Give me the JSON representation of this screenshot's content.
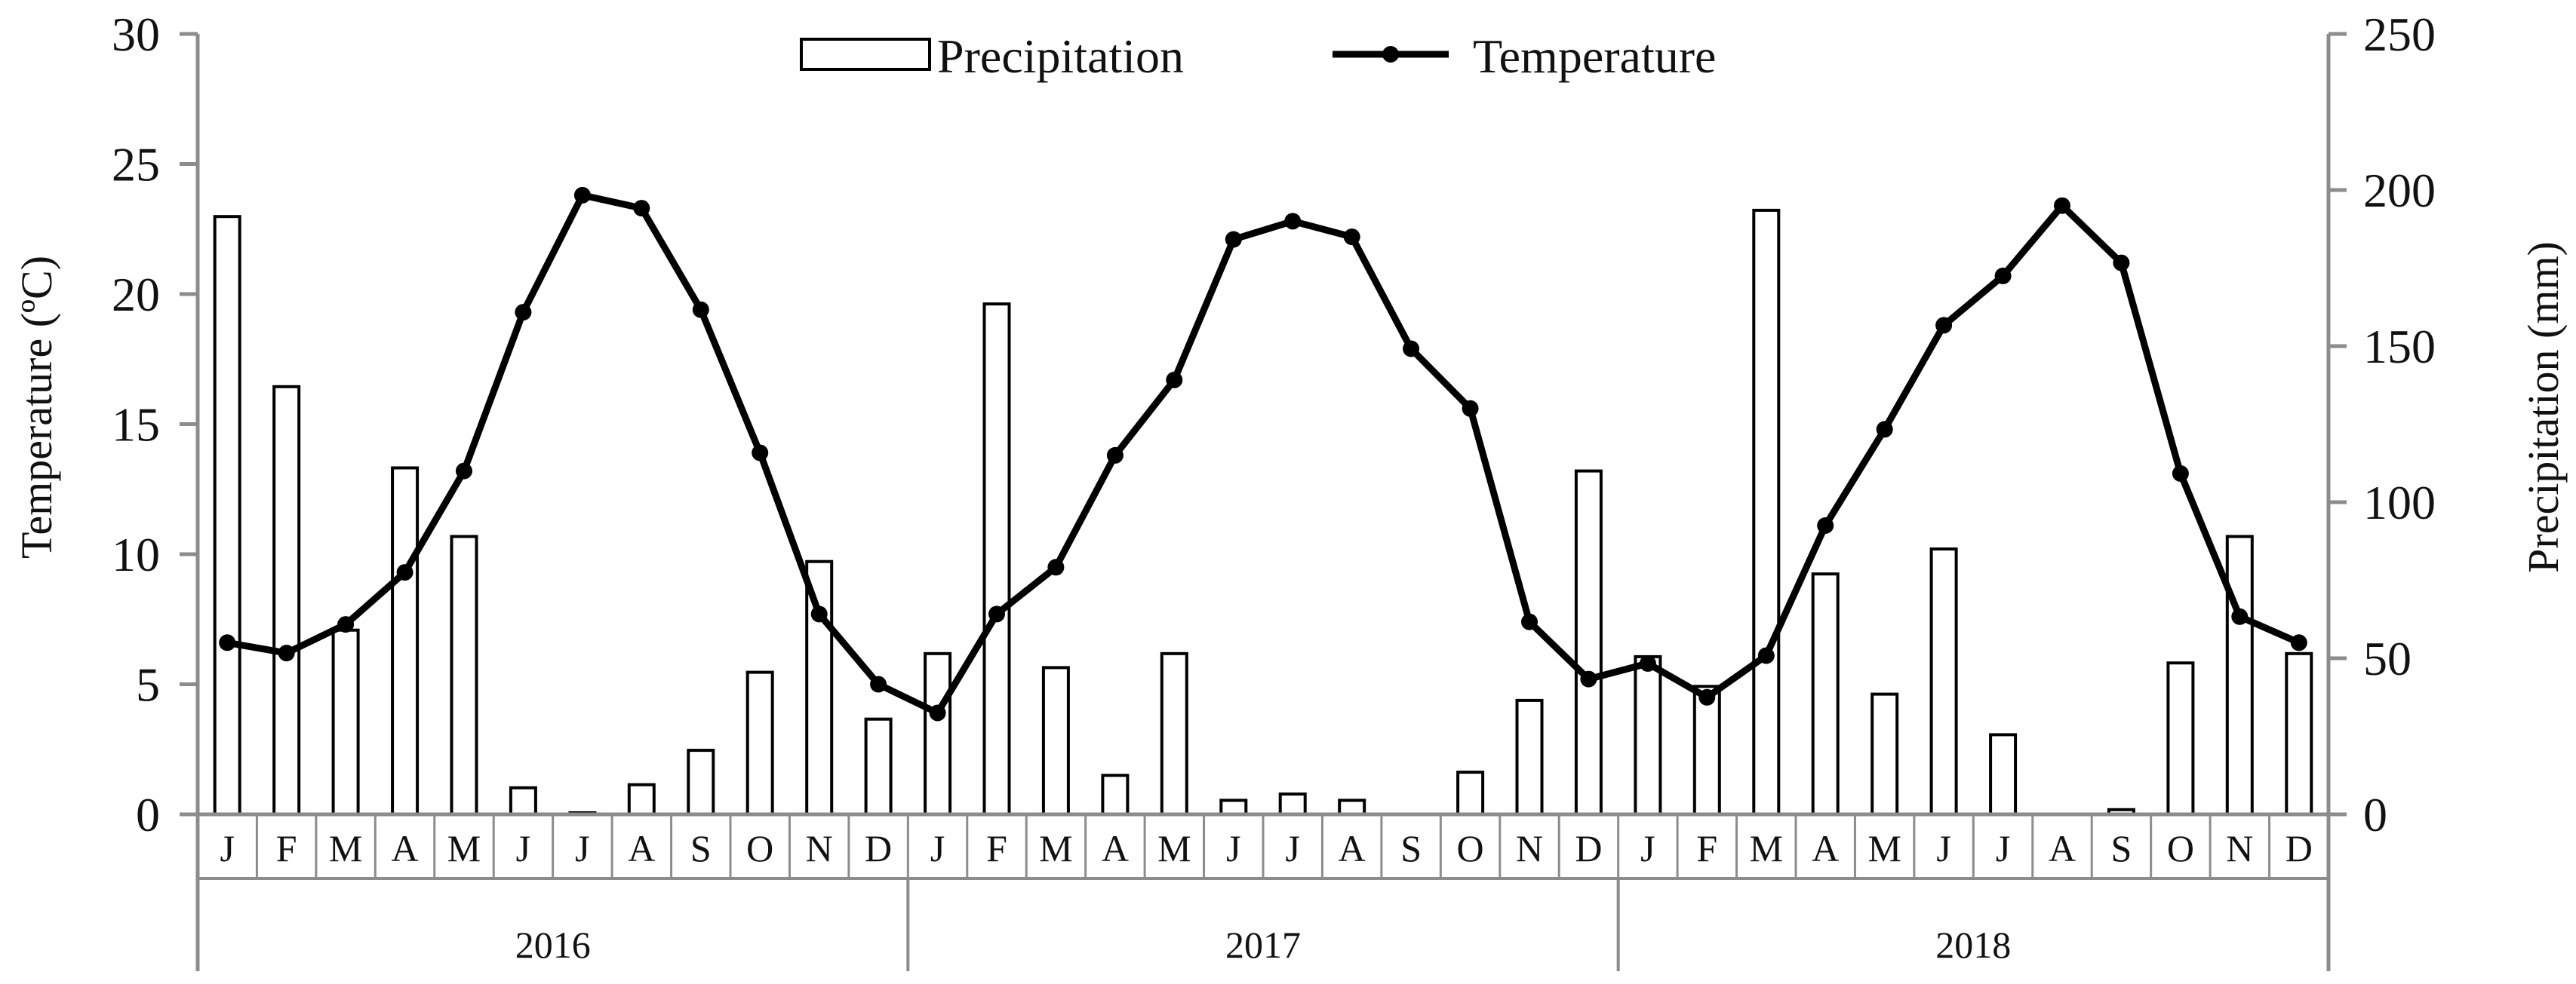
{
  "chart_data": {
    "type": "bar+line",
    "x_categories": [
      "J",
      "F",
      "M",
      "A",
      "M",
      "J",
      "J",
      "A",
      "S",
      "O",
      "N",
      "D",
      "J",
      "F",
      "M",
      "A",
      "M",
      "J",
      "J",
      "A",
      "S",
      "O",
      "N",
      "D",
      "J",
      "F",
      "M",
      "A",
      "M",
      "J",
      "J",
      "A",
      "S",
      "O",
      "N",
      "D"
    ],
    "year_groups": [
      {
        "label": "2016",
        "start": 0,
        "count": 12
      },
      {
        "label": "2017",
        "start": 12,
        "count": 12
      },
      {
        "label": "2018",
        "start": 24,
        "count": 12
      }
    ],
    "series": [
      {
        "name": "Precipitation",
        "type": "bar",
        "axis": "right",
        "values": [
          191.5,
          137,
          59,
          111,
          89,
          8.5,
          0.5,
          9.5,
          20.5,
          45.5,
          81,
          30.5,
          51.5,
          163.5,
          47,
          12.5,
          51.5,
          4.5,
          6.5,
          4.5,
          0,
          13.5,
          36.5,
          110,
          50.5,
          41,
          193.5,
          77,
          38.5,
          85,
          25.5,
          0,
          1.5,
          48.5,
          89,
          51.5
        ]
      },
      {
        "name": "Temperature",
        "type": "line",
        "axis": "left",
        "values": [
          6.6,
          6.2,
          7.3,
          9.3,
          13.2,
          19.3,
          23.8,
          23.3,
          19.4,
          13.9,
          7.7,
          5.0,
          3.9,
          7.7,
          9.5,
          13.8,
          16.7,
          22.1,
          22.8,
          22.2,
          17.9,
          15.6,
          7.4,
          5.2,
          5.8,
          4.5,
          6.1,
          11.1,
          14.8,
          18.8,
          20.7,
          23.4,
          21.2,
          13.1,
          7.6,
          6.6
        ]
      }
    ],
    "y_left": {
      "label": "Temperature (ºC)",
      "range": [
        0,
        30
      ],
      "ticks": [
        "0",
        "5",
        "10",
        "15",
        "20",
        "25",
        "30"
      ]
    },
    "y_right": {
      "label": "Precipitation (mm)",
      "range": [
        0,
        250
      ],
      "ticks": [
        "0",
        "50",
        "100",
        "150",
        "200",
        "250"
      ]
    },
    "legend": {
      "position": "top-center",
      "entries": [
        "Precipitation",
        "Temperature"
      ]
    },
    "grid": false
  }
}
